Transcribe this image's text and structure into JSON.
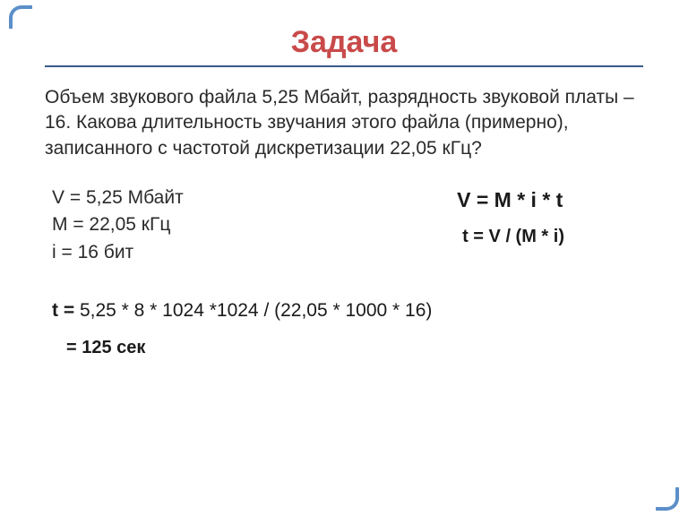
{
  "title": {
    "text": "Задача",
    "color": "#c94a4a"
  },
  "underline_color": "#3a5a8a",
  "corner_color": "#5b8fc9",
  "problem": {
    "text": "Объем звукового файла 5,25 Мбайт, разрядность звуковой платы – 16. Какова длительность звучания этого файла (примерно), записанного с частотой дискретизации 22,05 кГц?"
  },
  "givens": {
    "line1": "V = 5,25 Мбайт",
    "line2": "M = 22,05 кГц",
    "line3": "i = 16 бит"
  },
  "formulas": {
    "main": "V = M * i * t",
    "derived": "t = V / (M * i)"
  },
  "calculation": {
    "prefix": "t = ",
    "body": "5,25 * 8 * 1024 *1024 / (22,05 * 1000 * 16)"
  },
  "result": {
    "text": "= 125 сек"
  },
  "text_color": "#2a2a2a",
  "background_color": "#ffffff"
}
